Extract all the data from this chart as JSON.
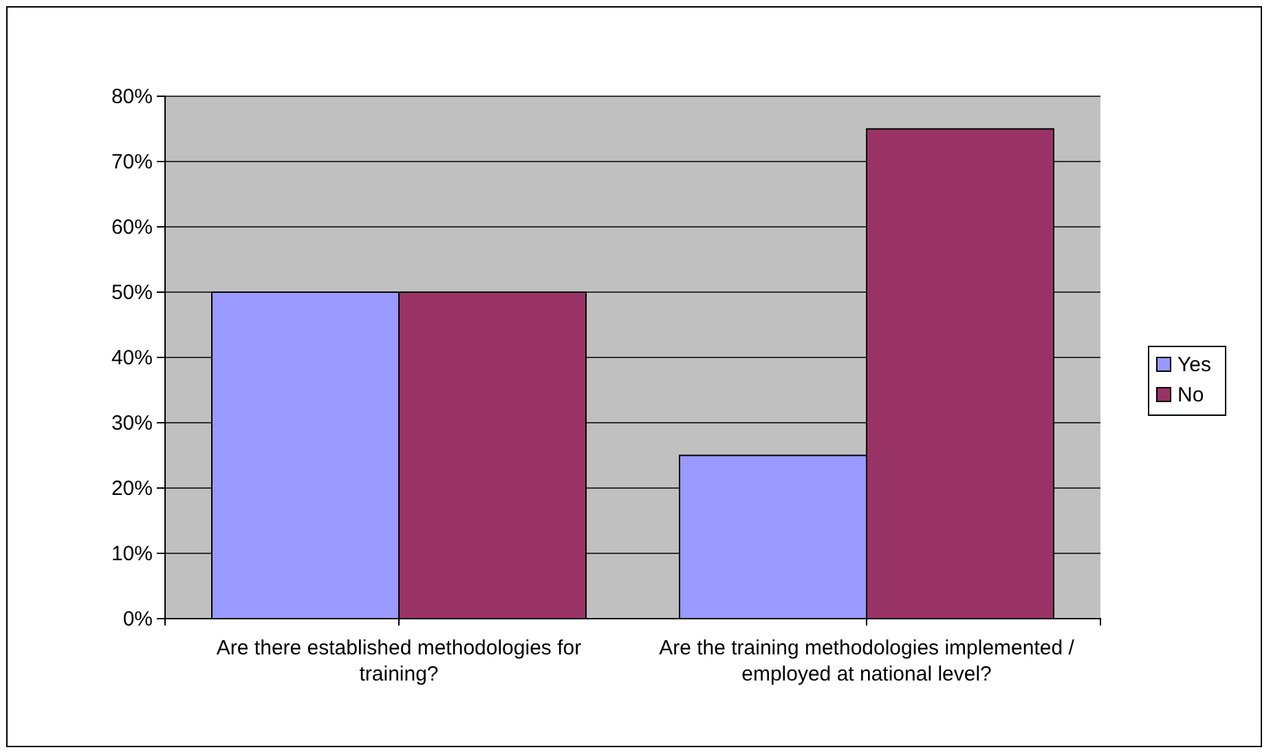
{
  "chart_data": {
    "type": "bar",
    "categories": [
      "Are there established methodologies for training?",
      "Are the training methodologies implemented / employed at national level?"
    ],
    "series": [
      {
        "name": "Yes",
        "color": "#9999ff",
        "values": [
          50,
          25
        ]
      },
      {
        "name": "No",
        "color": "#993366",
        "values": [
          50,
          75
        ]
      }
    ],
    "ylim": [
      0,
      80
    ],
    "yticks": [
      {
        "value": 0,
        "label": "0%"
      },
      {
        "value": 10,
        "label": "10%"
      },
      {
        "value": 20,
        "label": "20%"
      },
      {
        "value": 30,
        "label": "30%"
      },
      {
        "value": 40,
        "label": "40%"
      },
      {
        "value": 50,
        "label": "50%"
      },
      {
        "value": 60,
        "label": "60%"
      },
      {
        "value": 70,
        "label": "70%"
      },
      {
        "value": 80,
        "label": "80%"
      }
    ],
    "grid": "y",
    "legend": "right"
  }
}
